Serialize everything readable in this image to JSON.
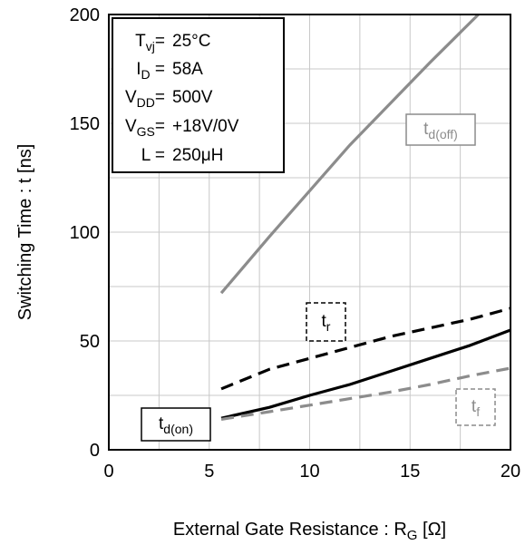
{
  "chart_data": {
    "type": "line",
    "xlabel": "External Gate Resistance : R",
    "xlabel_sub": "G",
    "xlabel_tail": " [Ω]",
    "ylabel": "Switching Time : t [ns]",
    "xlim": [
      0,
      20
    ],
    "ylim": [
      0,
      200
    ],
    "xticks": [
      0,
      5,
      10,
      15,
      20
    ],
    "yticks": [
      0,
      50,
      100,
      150,
      200
    ],
    "xtick_labels": [
      "0",
      "5",
      "10",
      "15",
      "20"
    ],
    "ytick_labels": [
      "0",
      "50",
      "100",
      "150",
      "200"
    ],
    "grid": true,
    "conditions": [
      {
        "sym": "T",
        "sub": "vj",
        "eq": "=",
        "val": "25°C"
      },
      {
        "sym": "I",
        "sub": "D",
        "eq": " =",
        "val": "58A"
      },
      {
        "sym": "V",
        "sub": "DD",
        "eq": "=",
        "val": "500V"
      },
      {
        "sym": "V",
        "sub": "GS",
        "eq": "=",
        "val": "+18V/0V"
      },
      {
        "sym": "L",
        "sub": "",
        "eq": " =",
        "val": "250μH"
      }
    ],
    "series": [
      {
        "name": "t_d(off)",
        "sym": "t",
        "sub": "d(off)",
        "color": "#8c8c8c",
        "dash": "solid",
        "x": [
          5.6,
          8,
          10,
          12,
          14,
          16,
          18.4
        ],
        "y": [
          72,
          98,
          119,
          140,
          159,
          178,
          200
        ]
      },
      {
        "name": "t_r",
        "sym": "t",
        "sub": "r",
        "color": "#000000",
        "dash": "dashed",
        "x": [
          5.6,
          8,
          10,
          12,
          14,
          16,
          18,
          20
        ],
        "y": [
          28,
          37,
          42,
          47,
          52,
          56,
          60,
          65
        ]
      },
      {
        "name": "t_d(on)",
        "sym": "t",
        "sub": "d(on)",
        "color": "#000000",
        "dash": "solid",
        "x": [
          5.6,
          8,
          10,
          12,
          14,
          16,
          18,
          20
        ],
        "y": [
          14.5,
          19.5,
          25,
          30,
          36,
          42,
          48,
          55
        ]
      },
      {
        "name": "t_f",
        "sym": "t",
        "sub": "f",
        "color": "#8c8c8c",
        "dash": "dashed",
        "x": [
          5.6,
          8,
          10,
          12,
          14,
          16,
          18,
          20
        ],
        "y": [
          14,
          17.5,
          20.5,
          23.5,
          26.5,
          30,
          34,
          37.5
        ]
      }
    ]
  }
}
